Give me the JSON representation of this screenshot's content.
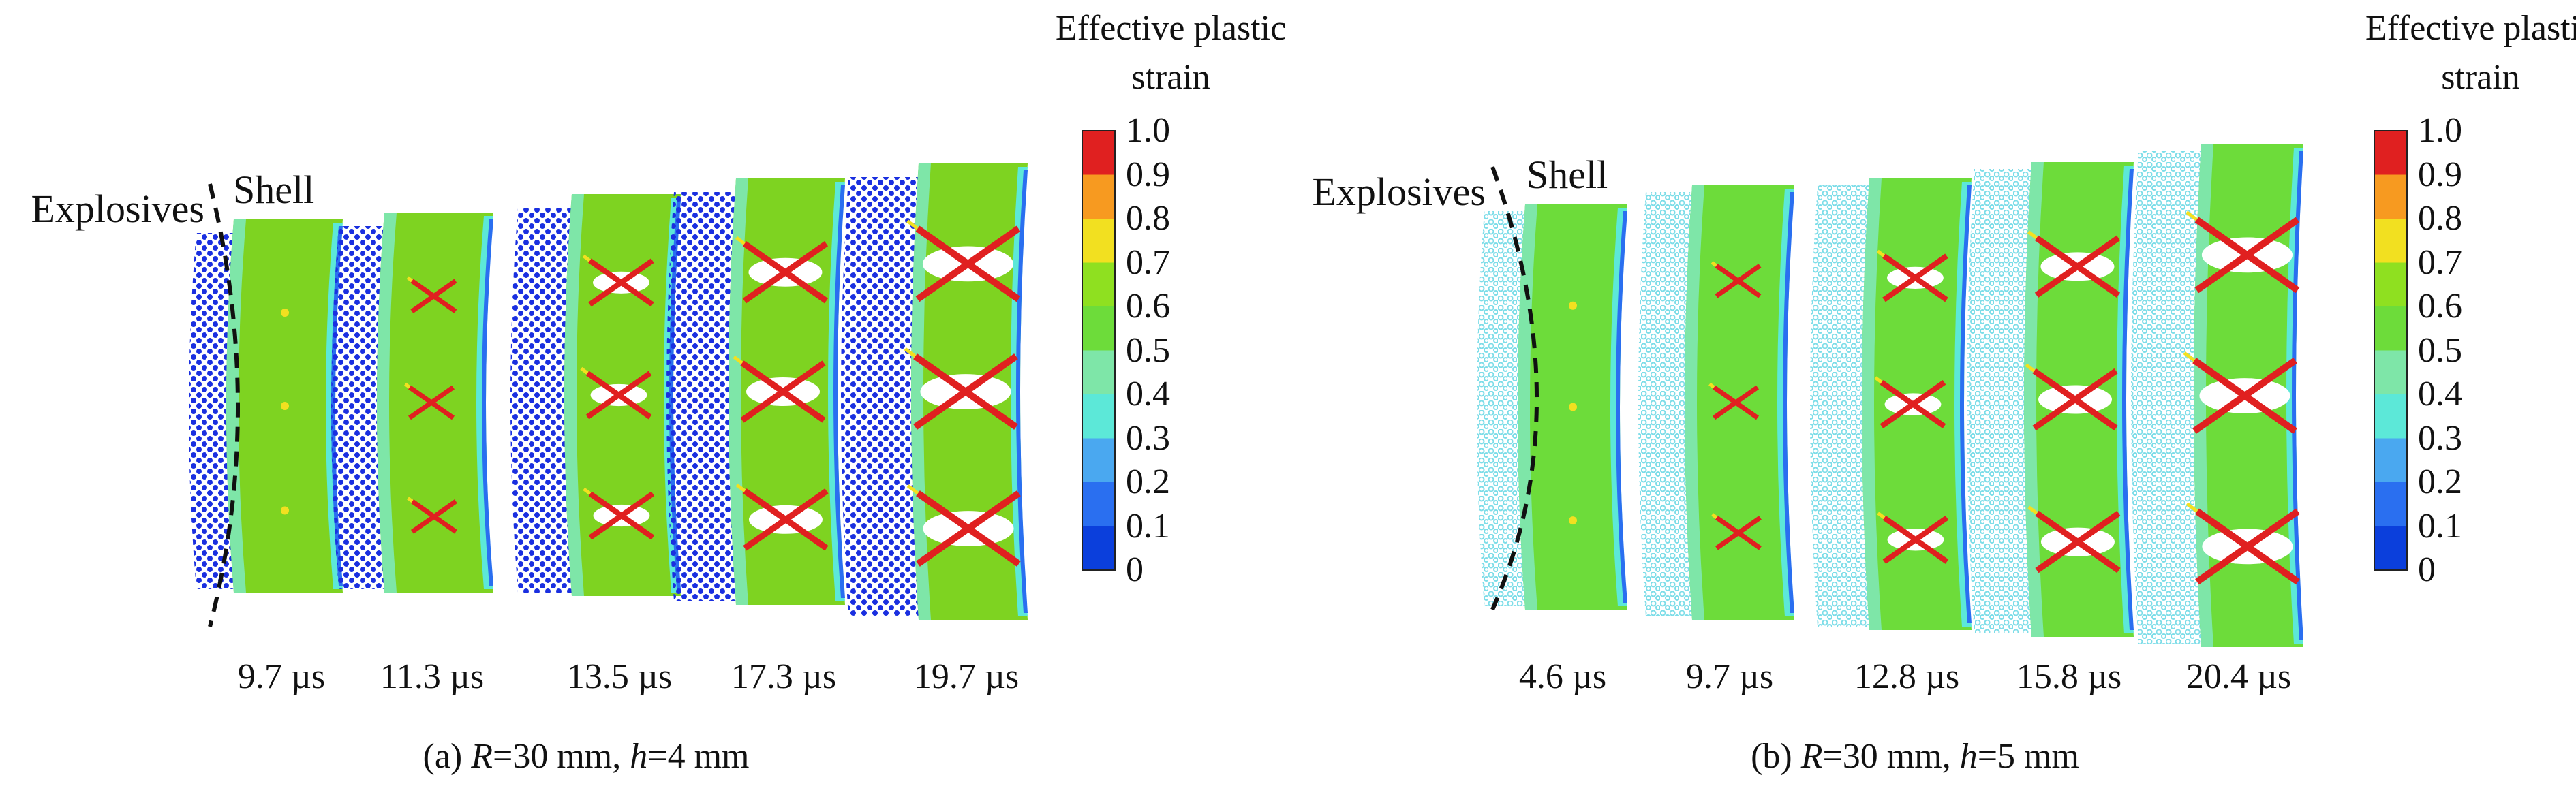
{
  "colors": {
    "background": "#ffffff",
    "strain_scale": [
      "#0b3fdc",
      "#2a6ff0",
      "#4aa8f0",
      "#5ce8d8",
      "#7ee6a8",
      "#6ddc3a",
      "#8fe020",
      "#f2e020",
      "#f79a20",
      "#e02020"
    ],
    "particle_blue": "#1a2fe0",
    "particle_cyan": "#7ddde8"
  },
  "panels": [
    {
      "id": "a",
      "caption": "(a) R=30 mm, h=4 mm",
      "caption_parts": {
        "prefix": "(a) ",
        "r_var": "R",
        "r_val": "=30 mm, ",
        "h_var": "h",
        "h_val": "=4 mm"
      },
      "labels": {
        "explosives": "Explosives",
        "shell": "Shell"
      },
      "times": [
        "9.7 µs",
        "11.3 µs",
        "13.5 µs",
        "17.3 µs",
        "19.7 µs"
      ],
      "colorbar": {
        "title_line1": "Effective plastic",
        "title_line2": "strain",
        "ticks": [
          "1.0",
          "0.9",
          "0.8",
          "0.7",
          "0.6",
          "0.5",
          "0.4",
          "0.3",
          "0.2",
          "0.1",
          "0"
        ]
      }
    },
    {
      "id": "b",
      "caption": "(b) R=30 mm, h=5 mm",
      "caption_parts": {
        "prefix": "(b) ",
        "r_var": "R",
        "r_val": "=30 mm, ",
        "h_var": "h",
        "h_val": "=5 mm"
      },
      "labels": {
        "explosives": "Explosives",
        "shell": "Shell"
      },
      "times": [
        "4.6 µs",
        "9.7 µs",
        "12.8 µs",
        "15.8 µs",
        "20.4 µs"
      ],
      "colorbar": {
        "title_line1": "Effective plastic",
        "title_line2": "strain",
        "ticks": [
          "1.0",
          "0.9",
          "0.8",
          "0.7",
          "0.6",
          "0.5",
          "0.4",
          "0.3",
          "0.2",
          "0.1",
          "0"
        ]
      }
    }
  ]
}
